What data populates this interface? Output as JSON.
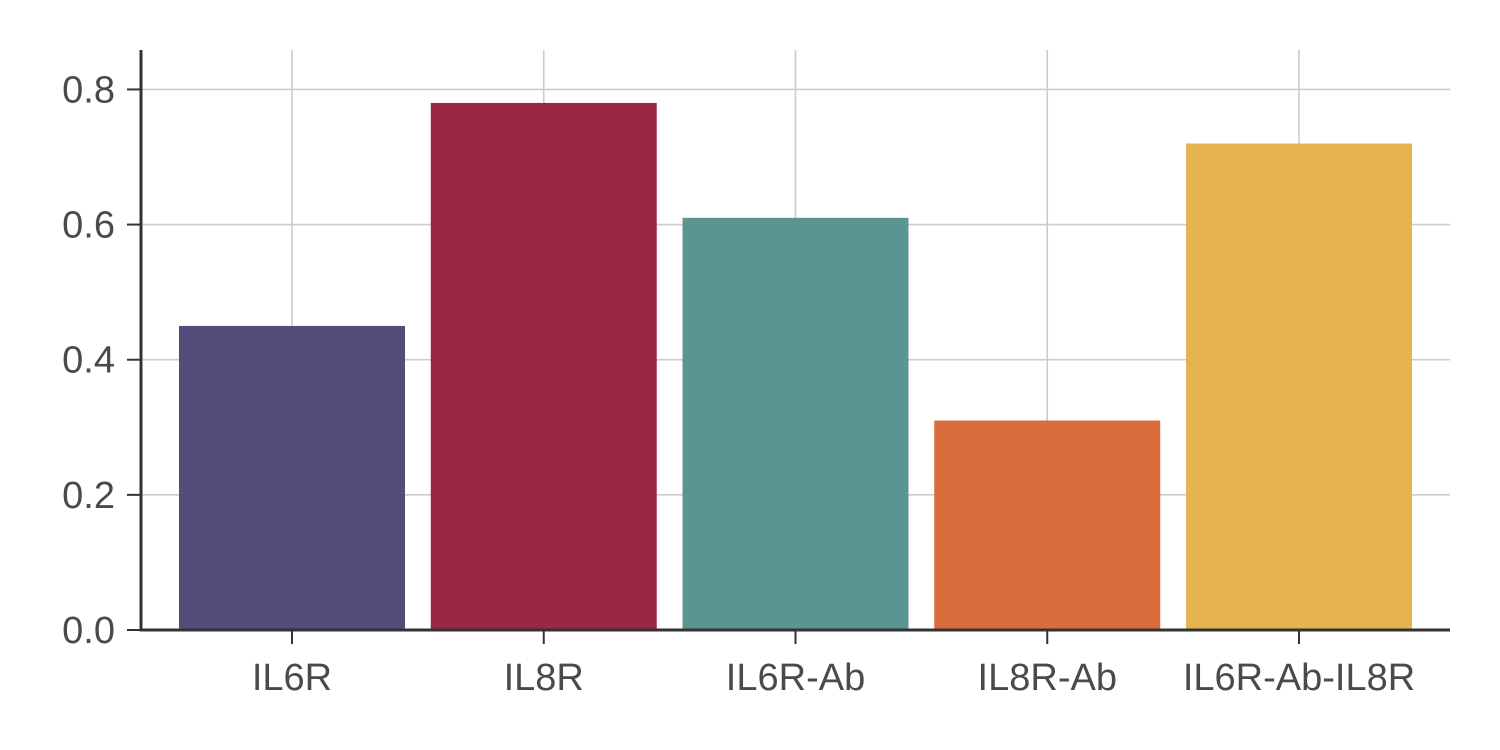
{
  "chart_data": {
    "type": "bar",
    "title": "",
    "xlabel": "",
    "ylabel": "",
    "categories": [
      "IL6R",
      "IL8R",
      "IL6R-Ab",
      "IL8R-Ab",
      "IL6R-Ab-IL8R"
    ],
    "values": [
      0.45,
      0.78,
      0.61,
      0.31,
      0.72
    ],
    "colors": [
      "#544c7b",
      "#9b2746",
      "#5a9594",
      "#da6c3d",
      "#e5b451"
    ],
    "ylim": [
      0,
      0.86
    ],
    "yticks": [
      0.0,
      0.2,
      0.4,
      0.6,
      0.8
    ],
    "ytick_labels": [
      "0.0",
      "0.2",
      "0.4",
      "0.6",
      "0.8"
    ],
    "grid": true,
    "legend": "none"
  }
}
